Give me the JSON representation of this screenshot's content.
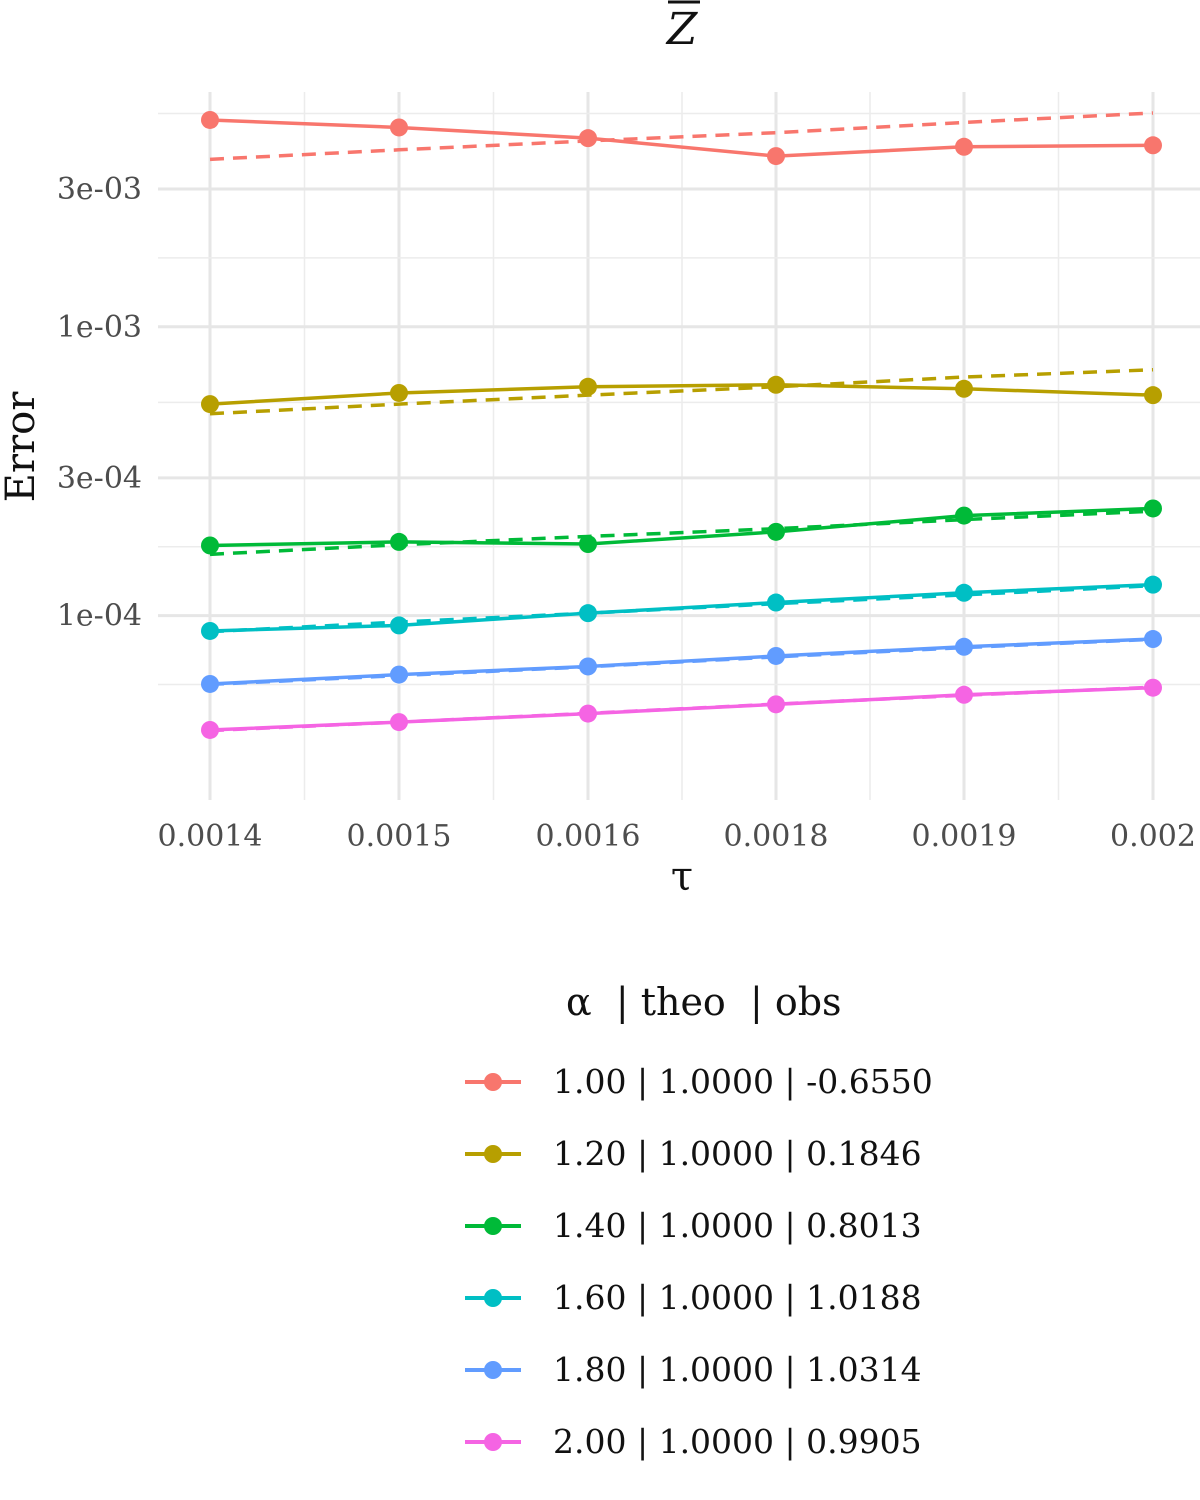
{
  "chart_data": {
    "type": "line",
    "title": "Z",
    "xlabel": "τ",
    "ylabel": "Error",
    "x_ticks": [
      "0.0014",
      "0.0015",
      "0.0016",
      "0.0018",
      "0.0019",
      "0.002"
    ],
    "y_scale": "log",
    "y_ticks": [
      {
        "value": 0.003,
        "label": "3e-03"
      },
      {
        "value": 0.001,
        "label": "1e-03"
      },
      {
        "value": 0.0003,
        "label": "3e-04"
      },
      {
        "value": 0.0001,
        "label": "1e-04"
      }
    ],
    "ylim": [
      2.3e-05,
      0.0065
    ],
    "grid": true,
    "legend": {
      "title": "α  | theo  | obs",
      "position": "bottom"
    },
    "series": [
      {
        "name": "1.00 | 1.0000 | -0.6550",
        "color": "#F8766D",
        "observed": [
          0.0052,
          0.0049,
          0.0045,
          0.0039,
          0.0042,
          0.00425
        ],
        "theoretical": [
          0.0038,
          0.0041,
          0.0044,
          0.0047,
          0.0051,
          0.0055
        ]
      },
      {
        "name": "1.20 | 1.0000 | 0.1846",
        "color": "#B79F00",
        "observed": [
          0.00054,
          0.00059,
          0.00062,
          0.00063,
          0.00061,
          0.00058
        ],
        "theoretical": [
          0.0005,
          0.00054,
          0.00058,
          0.00062,
          0.00067,
          0.00071
        ]
      },
      {
        "name": "1.40 | 1.0000 | 0.8013",
        "color": "#00BA38",
        "observed": [
          0.000175,
          0.00018,
          0.000177,
          0.000195,
          0.000222,
          0.000235
        ],
        "theoretical": [
          0.000163,
          0.000176,
          0.000188,
          0.0002,
          0.000215,
          0.00023
        ]
      },
      {
        "name": "1.60 | 1.0000 | 1.0188",
        "color": "#00BFC4",
        "observed": [
          8.85e-05,
          9.25e-05,
          0.000102,
          0.000111,
          0.00012,
          0.000128
        ],
        "theoretical": [
          8.8e-05,
          9.5e-05,
          0.000102,
          0.00011,
          0.000118,
          0.000127
        ]
      },
      {
        "name": "1.80 | 1.0000 | 1.0314",
        "color": "#619CFF",
        "observed": [
          5.8e-05,
          6.25e-05,
          6.67e-05,
          7.25e-05,
          7.8e-05,
          8.3e-05
        ],
        "theoretical": [
          5.78e-05,
          6.2e-05,
          6.65e-05,
          7.2e-05,
          7.75e-05,
          8.28e-05
        ]
      },
      {
        "name": "2.00 | 1.0000 | 0.9905",
        "color": "#F564E3",
        "observed": [
          4.02e-05,
          4.28e-05,
          4.58e-05,
          4.93e-05,
          5.32e-05,
          5.63e-05
        ],
        "theoretical": [
          4e-05,
          4.28e-05,
          4.59e-05,
          4.94e-05,
          5.3e-05,
          5.65e-05
        ]
      }
    ]
  }
}
